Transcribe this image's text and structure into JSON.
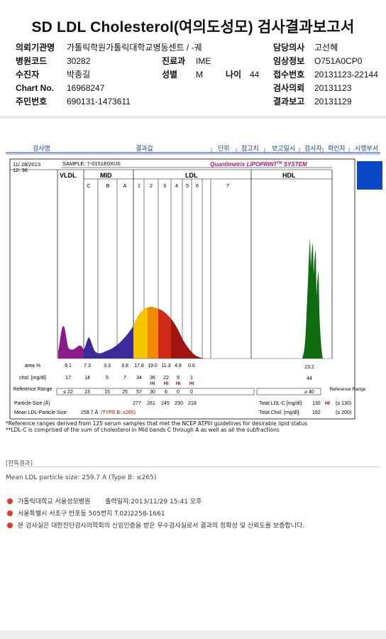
{
  "title": "SD LDL Cholesterol(여의도성모) 검사결과보고서",
  "info": {
    "institution_label": "의뢰기관명",
    "institution_value": "가톨릭학원가톨릭대학교병동센트 / -궤",
    "doctor_label": "담당의사",
    "doctor_value": "고선혜",
    "hospital_code_label": "병원코드",
    "hospital_code_value": "30282",
    "dept_label": "진료과",
    "dept_value": "IME",
    "clinical_label": "임상정보",
    "clinical_value": "O751A0CP0",
    "patient_label": "수진자",
    "patient_value": "박종길",
    "sex_label": "성별",
    "sex_value": "M",
    "age_label": "나이",
    "age_value": "44",
    "receipt_label": "접수번호",
    "receipt_value": "20131123-22144",
    "chart_label": "Chart No.",
    "chart_value": "16968247",
    "request_label": "검사의뢰",
    "request_value": "20131123",
    "id_label": "주민번호",
    "id_value": "690131-1473611",
    "report_label": "결과보고",
    "report_value": "20131129"
  },
  "column_headers": [
    "검사명",
    "결과값",
    "단위",
    "참고치",
    "보고일시",
    "검사자",
    "확인자",
    "시행부서"
  ],
  "report": {
    "date": "11/ 28/2013",
    "time": "12: 36",
    "sample": "SAMPLE:   7-0151E0XU0",
    "brand": "Quantimetrix LIPOPRINT",
    "brand_tm": "TM",
    "brand_suffix": " SYSTEM",
    "bands": {
      "vldl": "VLDL",
      "mid": "MID",
      "ldl": "LDL",
      "hdl": "HDL",
      "sub": [
        "C",
        "B",
        "A",
        "1",
        "2",
        "3",
        "4",
        "5",
        "6",
        "7"
      ]
    },
    "rows": {
      "area_label": "area %",
      "area_values": [
        "9.1",
        "7.3",
        "3.3",
        "3.8",
        "17.8",
        "19.0",
        "11.3",
        "4.8",
        "0.6"
      ],
      "area_hdl": "23.2",
      "chol_label": "chol. [mg/dl]",
      "chol_values": [
        "17",
        "14",
        "5",
        "7",
        "34",
        "36",
        "22",
        "9",
        "1"
      ],
      "chol_hdl": "44",
      "flags": [
        "HI",
        "HI",
        "HI",
        "HI"
      ],
      "ref_label": "Reference Range",
      "ref_values": [
        "≤ 22",
        "23",
        "15",
        "25",
        "57",
        "30",
        "6",
        "0",
        "0"
      ],
      "ref_hdl": "≥ 40",
      "ref_label_right": "Reference Range",
      "particle_label": "Particle-Size (Å)",
      "particle_values": [
        "277",
        "261",
        "245",
        "230",
        "218"
      ],
      "mean_label": "Mean LDL-Particle Size:",
      "mean_value": "259.7 Å",
      "mean_type": "(TYPE B; ≤265)",
      "total_ldl_label": "Total LDL-C [mg/dl]:",
      "total_ldl_value": "130",
      "total_ldl_flag": "HI",
      "total_ldl_ref": "(≤ 130)",
      "total_chol_label": "Total Chol. [mg/dl]:",
      "total_chol_value": "192",
      "total_chol_ref": "(≤ 200)"
    },
    "note1": "*Reference ranges derived from 125 serum samples that met the NCEP ATPIII guidelines for desirable lipid status",
    "note2": "**LDL-C is comprised of the sum of cholesterol in Mid bands C through A as well as all the subfractions"
  },
  "section_label": "[판독결과]",
  "mean_text": "Mean LDL particle size: 259.7 A  (Type B: ≤265)",
  "footer": {
    "line1a": "가톨릭대학교 서울성모병원",
    "line1b": "출력일자:2013/11/29 15:41 오후",
    "line2": "서울특별시 서초구 반포동 505번지 T.02)2258-1661",
    "line3": "본 검사실은 대한진단검사의학회의 신임인증을 받은 우수검사실로서 결과의 정확성 및 신뢰도를 보증합니다."
  },
  "colors": {
    "vldl": "#8b1a8b",
    "mid": "#3a2a9a",
    "ldl1": "#f4c400",
    "ldl2": "#f08a00",
    "ldl3": "#d12a1a",
    "ldl4": "#a01510",
    "hdl": "#0f6b0f",
    "accent": "#0a47c7",
    "flag": "#c00000"
  }
}
